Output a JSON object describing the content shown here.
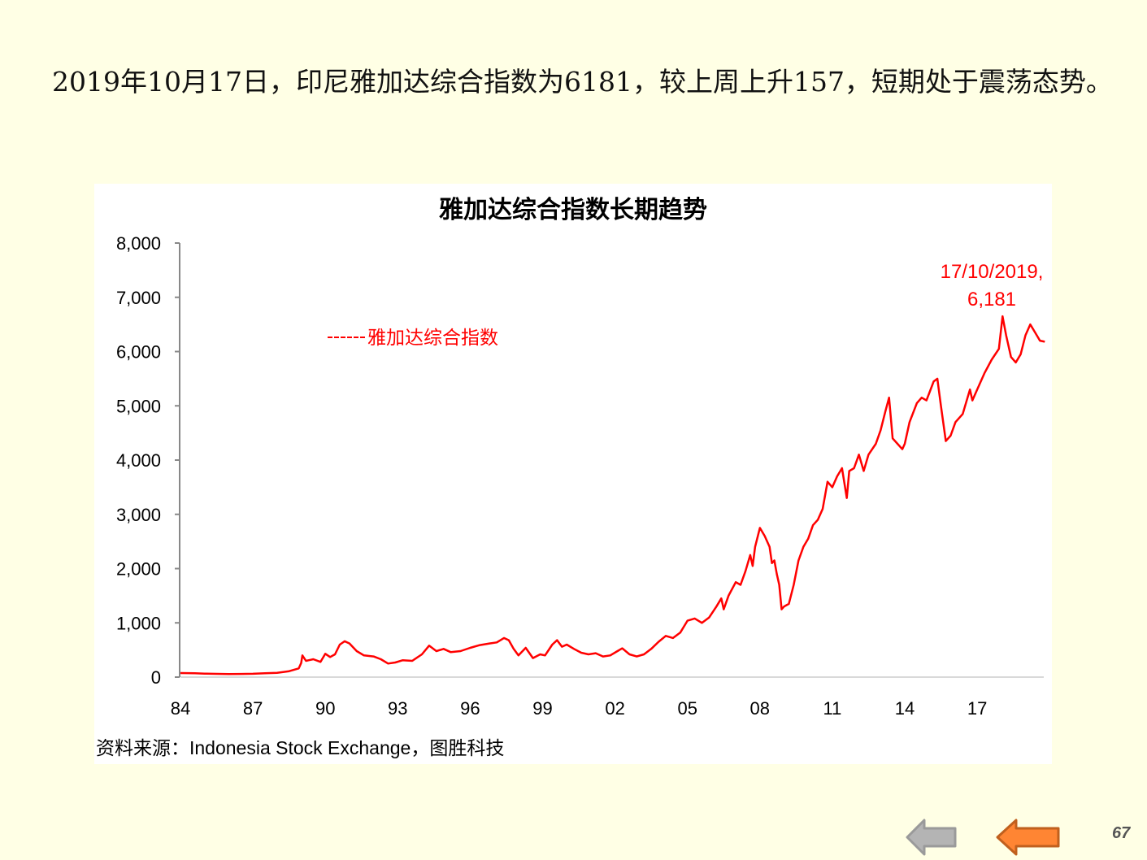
{
  "slide": {
    "headline": "2019年10月17日，印尼雅加达综合指数为6181，较上周上升157，短期处于震荡态势。",
    "page_number": "67",
    "nav": {
      "prev_gray_icon": "left-arrow-icon",
      "prev_orange_icon": "left-arrow-icon",
      "gray_color": "#B4B4B4",
      "orange_color": "#FF8533"
    },
    "source": "资料来源：Indonesia  Stock Exchange，图胜科技"
  },
  "chart_data": {
    "type": "line",
    "title": "雅加达综合指数长期趋势",
    "xlabel": "",
    "ylabel": "",
    "xlim": [
      1984,
      2019.8
    ],
    "ylim": [
      0,
      8000
    ],
    "x_ticks": [
      1984,
      1987,
      1990,
      1993,
      1996,
      1999,
      2002,
      2005,
      2008,
      2011,
      2014,
      2017
    ],
    "x_tick_labels": [
      "84",
      "87",
      "90",
      "93",
      "96",
      "99",
      "02",
      "05",
      "08",
      "11",
      "14",
      "17"
    ],
    "y_ticks": [
      0,
      1000,
      2000,
      3000,
      4000,
      5000,
      6000,
      7000,
      8000
    ],
    "y_tick_labels": [
      "0",
      "1,000",
      "2,000",
      "3,000",
      "4,000",
      "5,000",
      "6,000",
      "7,000",
      "8,000"
    ],
    "grid": false,
    "legend": {
      "position": "top-left",
      "entries": [
        "雅加达综合指数"
      ]
    },
    "annotation": {
      "line1": "17/10/2019,",
      "line2": "6,181",
      "x": 2019.8,
      "y": 6181
    },
    "series": [
      {
        "name": "雅加达综合指数",
        "color": "#FF0000",
        "points": [
          [
            1984.0,
            75
          ],
          [
            1984.6,
            70
          ],
          [
            1985.0,
            65
          ],
          [
            1985.5,
            60
          ],
          [
            1986.0,
            55
          ],
          [
            1986.5,
            58
          ],
          [
            1987.0,
            62
          ],
          [
            1987.5,
            70
          ],
          [
            1988.0,
            80
          ],
          [
            1988.5,
            110
          ],
          [
            1988.9,
            160
          ],
          [
            1989.0,
            260
          ],
          [
            1989.05,
            400
          ],
          [
            1989.2,
            300
          ],
          [
            1989.5,
            330
          ],
          [
            1989.8,
            280
          ],
          [
            1990.0,
            430
          ],
          [
            1990.2,
            370
          ],
          [
            1990.4,
            420
          ],
          [
            1990.6,
            600
          ],
          [
            1990.8,
            660
          ],
          [
            1991.0,
            620
          ],
          [
            1991.3,
            480
          ],
          [
            1991.6,
            400
          ],
          [
            1992.0,
            380
          ],
          [
            1992.3,
            330
          ],
          [
            1992.6,
            250
          ],
          [
            1992.9,
            270
          ],
          [
            1993.2,
            310
          ],
          [
            1993.6,
            300
          ],
          [
            1994.0,
            420
          ],
          [
            1994.3,
            580
          ],
          [
            1994.6,
            480
          ],
          [
            1994.9,
            520
          ],
          [
            1995.2,
            460
          ],
          [
            1995.6,
            480
          ],
          [
            1996.0,
            540
          ],
          [
            1996.4,
            590
          ],
          [
            1996.8,
            620
          ],
          [
            1997.1,
            640
          ],
          [
            1997.4,
            720
          ],
          [
            1997.6,
            680
          ],
          [
            1997.8,
            520
          ],
          [
            1998.0,
            400
          ],
          [
            1998.3,
            540
          ],
          [
            1998.6,
            350
          ],
          [
            1998.9,
            420
          ],
          [
            1999.1,
            400
          ],
          [
            1999.4,
            600
          ],
          [
            1999.6,
            680
          ],
          [
            1999.8,
            560
          ],
          [
            2000.0,
            600
          ],
          [
            2000.3,
            520
          ],
          [
            2000.6,
            450
          ],
          [
            2000.9,
            420
          ],
          [
            2001.2,
            440
          ],
          [
            2001.5,
            380
          ],
          [
            2001.8,
            400
          ],
          [
            2002.1,
            480
          ],
          [
            2002.3,
            530
          ],
          [
            2002.6,
            420
          ],
          [
            2002.9,
            380
          ],
          [
            2003.2,
            420
          ],
          [
            2003.5,
            520
          ],
          [
            2003.8,
            650
          ],
          [
            2004.1,
            760
          ],
          [
            2004.4,
            720
          ],
          [
            2004.7,
            820
          ],
          [
            2005.0,
            1040
          ],
          [
            2005.3,
            1080
          ],
          [
            2005.6,
            1000
          ],
          [
            2005.9,
            1100
          ],
          [
            2006.2,
            1300
          ],
          [
            2006.4,
            1450
          ],
          [
            2006.5,
            1250
          ],
          [
            2006.7,
            1500
          ],
          [
            2007.0,
            1750
          ],
          [
            2007.2,
            1700
          ],
          [
            2007.4,
            1950
          ],
          [
            2007.6,
            2250
          ],
          [
            2007.7,
            2050
          ],
          [
            2007.8,
            2400
          ],
          [
            2008.0,
            2750
          ],
          [
            2008.2,
            2600
          ],
          [
            2008.4,
            2400
          ],
          [
            2008.5,
            2100
          ],
          [
            2008.6,
            2150
          ],
          [
            2008.7,
            1900
          ],
          [
            2008.8,
            1700
          ],
          [
            2008.9,
            1250
          ],
          [
            2009.0,
            1300
          ],
          [
            2009.2,
            1350
          ],
          [
            2009.4,
            1700
          ],
          [
            2009.6,
            2150
          ],
          [
            2009.8,
            2400
          ],
          [
            2010.0,
            2550
          ],
          [
            2010.2,
            2800
          ],
          [
            2010.4,
            2900
          ],
          [
            2010.6,
            3100
          ],
          [
            2010.8,
            3600
          ],
          [
            2011.0,
            3500
          ],
          [
            2011.2,
            3700
          ],
          [
            2011.4,
            3850
          ],
          [
            2011.6,
            3300
          ],
          [
            2011.7,
            3800
          ],
          [
            2011.9,
            3850
          ],
          [
            2012.1,
            4100
          ],
          [
            2012.3,
            3800
          ],
          [
            2012.5,
            4100
          ],
          [
            2012.8,
            4300
          ],
          [
            2013.0,
            4550
          ],
          [
            2013.2,
            4900
          ],
          [
            2013.35,
            5150
          ],
          [
            2013.5,
            4400
          ],
          [
            2013.7,
            4300
          ],
          [
            2013.9,
            4200
          ],
          [
            2014.0,
            4300
          ],
          [
            2014.2,
            4700
          ],
          [
            2014.5,
            5050
          ],
          [
            2014.7,
            5150
          ],
          [
            2014.9,
            5100
          ],
          [
            2015.2,
            5450
          ],
          [
            2015.35,
            5500
          ],
          [
            2015.5,
            5000
          ],
          [
            2015.7,
            4350
          ],
          [
            2015.9,
            4450
          ],
          [
            2016.1,
            4700
          ],
          [
            2016.4,
            4850
          ],
          [
            2016.7,
            5300
          ],
          [
            2016.8,
            5100
          ],
          [
            2017.0,
            5300
          ],
          [
            2017.3,
            5600
          ],
          [
            2017.6,
            5850
          ],
          [
            2017.9,
            6050
          ],
          [
            2018.05,
            6650
          ],
          [
            2018.2,
            6300
          ],
          [
            2018.4,
            5900
          ],
          [
            2018.6,
            5800
          ],
          [
            2018.8,
            5950
          ],
          [
            2019.0,
            6300
          ],
          [
            2019.2,
            6500
          ],
          [
            2019.4,
            6350
          ],
          [
            2019.6,
            6200
          ],
          [
            2019.8,
            6181
          ]
        ]
      }
    ]
  }
}
